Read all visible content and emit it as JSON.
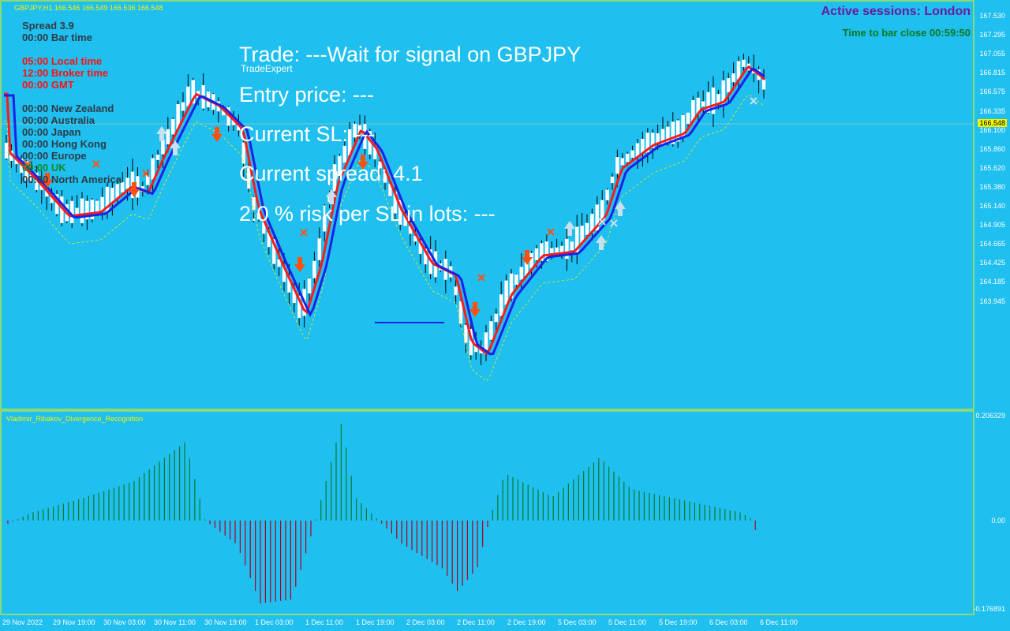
{
  "symbol_header": "GBPJPY,H1  166.546 166.549 166.536 166.548",
  "info_panel": {
    "rows": [
      {
        "text": "Spread     3.9",
        "color": "dark"
      },
      {
        "text": "00:00 Bar time",
        "color": "dark"
      },
      {
        "text": "",
        "color": "dark"
      },
      {
        "text": "05:00 Local time",
        "color": "red"
      },
      {
        "text": "12:00 Broker time",
        "color": "red"
      },
      {
        "text": "00:00 GMT",
        "color": "red"
      },
      {
        "text": "",
        "color": "dark"
      },
      {
        "text": "00:00 New Zealand",
        "color": "dark"
      },
      {
        "text": "00:00 Australia",
        "color": "dark"
      },
      {
        "text": "00:00 Japan",
        "color": "dark"
      },
      {
        "text": "00:00 Hong Kong",
        "color": "dark"
      },
      {
        "text": "00:00 Europe",
        "color": "dark"
      },
      {
        "text": "00:00 UK",
        "color": "green"
      },
      {
        "text": "00:00 North America",
        "color": "dark"
      }
    ]
  },
  "trade_expert": {
    "label": "TradeExpert",
    "trade_line": "Trade: ---Wait for signal on  GBPJPY",
    "entry_line": "Entry price: ---",
    "sl_line": "Current SL: ---",
    "spread_line": "Current spread: 4.1",
    "risk_line": "2.0 % risk per SL in lots: ---"
  },
  "sessions": {
    "active": "Active sessions:  London",
    "bar_close": "Time to bar close 00:59:50"
  },
  "price_axis": {
    "labels": [
      "167.530",
      "167.295",
      "167.055",
      "166.815",
      "166.575",
      "166.335",
      "166.100",
      "165.860",
      "165.620",
      "165.380",
      "165.140",
      "164.905",
      "164.665",
      "164.425",
      "164.185",
      "163.945"
    ],
    "current": "166.548"
  },
  "sub_window": {
    "title": "Vladimir_Ribakov_Divergence_Recognition",
    "max": "0.206329",
    "zero": "0.00",
    "min": "-0.176891"
  },
  "time_axis": [
    "29 Nov 2022",
    "29 Nov 19:00",
    "30 Nov 03:00",
    "30 Nov 11:00",
    "30 Nov 19:00",
    "1 Dec 03:00",
    "1 Dec 11:00",
    "1 Dec 19:00",
    "2 Dec 03:00",
    "2 Dec 11:00",
    "2 Dec 19:00",
    "5 Dec 03:00",
    "5 Dec 11:00",
    "5 Dec 19:00",
    "6 Dec 03:00",
    "6 Dec 11:00"
  ],
  "colors": {
    "background": "#1fbff0",
    "bull_candle": "#ffffff",
    "bear_candle": "#ffffff",
    "wick": "#000000",
    "ma_red": "#ff1a1a",
    "ma_blue": "#1a22e6",
    "sell_arrow": "#ff5010",
    "buy_arrow": "#c8e0f0",
    "histogram_up": "#0a7a2a",
    "histogram_down": "#b00020",
    "grid_line": "#f5f500"
  }
}
